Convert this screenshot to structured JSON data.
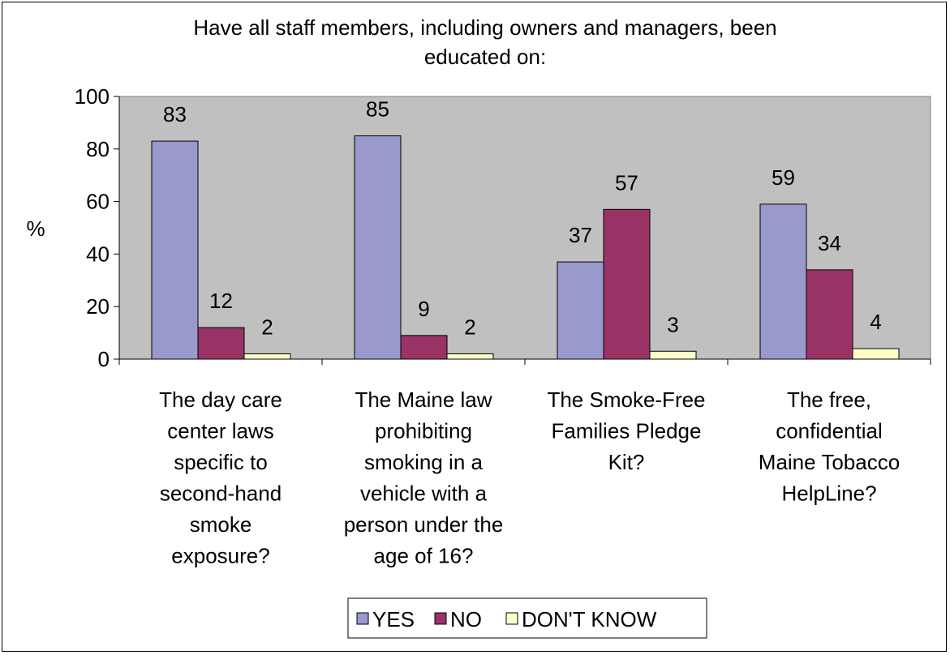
{
  "chart_data": {
    "type": "bar",
    "title_lines": [
      "Have all staff members, including owners and managers, been",
      "educated on:"
    ],
    "ylabel": "%",
    "ylim": [
      0,
      100
    ],
    "yticks": [
      0,
      20,
      40,
      60,
      80,
      100
    ],
    "categories": [
      [
        "The day care",
        "center laws",
        "specific to",
        "second-hand",
        "smoke",
        "exposure?"
      ],
      [
        "The Maine law",
        "prohibiting",
        "smoking in a",
        "vehicle with a",
        "person under the",
        "age of 16?"
      ],
      [
        "The Smoke-Free",
        "Families Pledge",
        "Kit?"
      ],
      [
        "The free,",
        "confidential",
        "Maine Tobacco",
        "HelpLine?"
      ]
    ],
    "series": [
      {
        "name": "YES",
        "values": [
          83,
          85,
          37,
          59
        ],
        "color": "#9999cc"
      },
      {
        "name": "NO",
        "values": [
          12,
          9,
          57,
          34
        ],
        "color": "#993366"
      },
      {
        "name": "DON'T KNOW",
        "values": [
          2,
          2,
          3,
          4
        ],
        "color": "#ffffcc"
      }
    ],
    "plot_background": "#c0c0c0",
    "grid": false,
    "legend_position": "bottom"
  }
}
